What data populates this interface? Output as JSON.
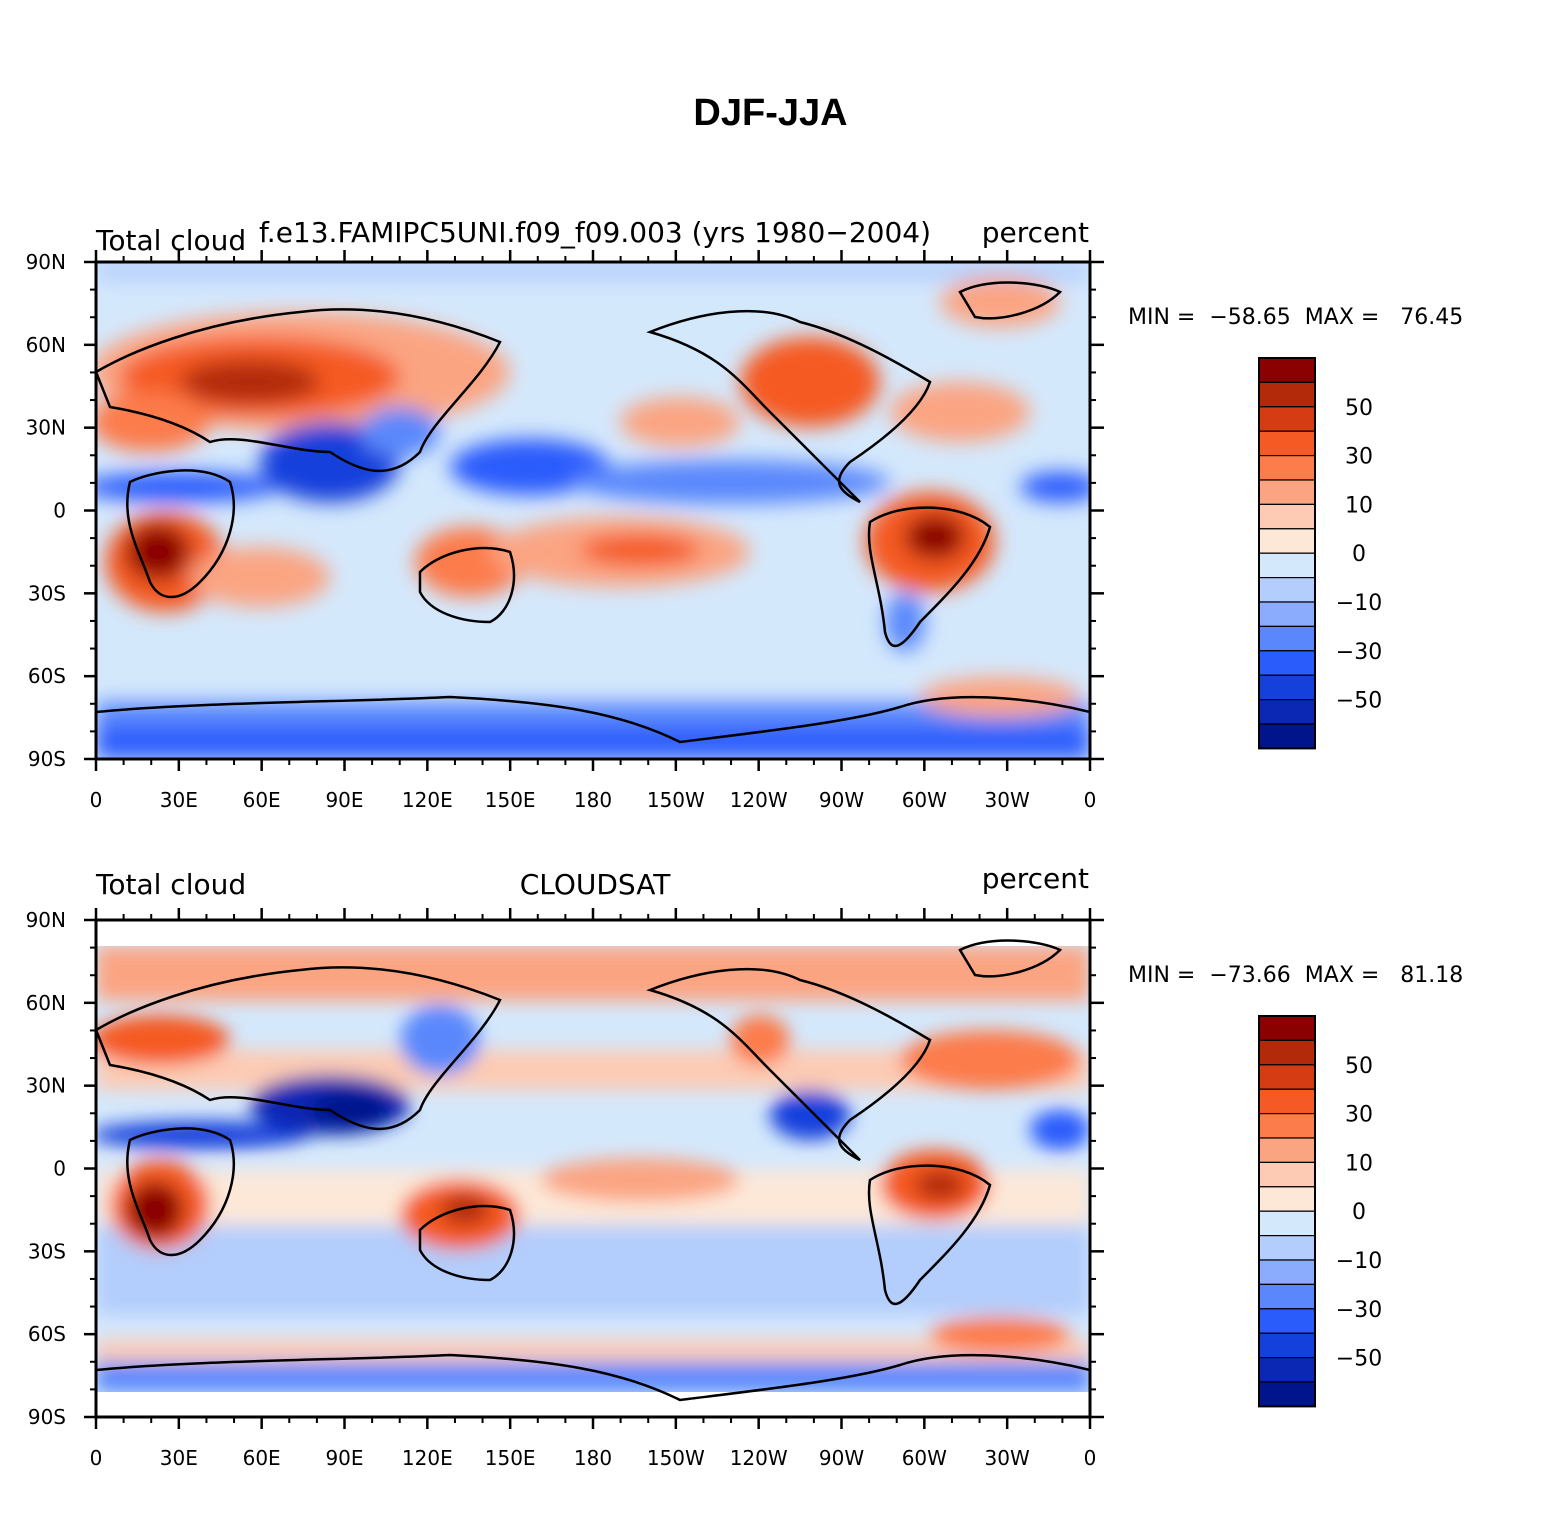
{
  "title": "DJF-JJA",
  "x_ticks": [
    "0",
    "30E",
    "60E",
    "90E",
    "120E",
    "150E",
    "180",
    "150W",
    "120W",
    "90W",
    "60W",
    "30W",
    "0"
  ],
  "y_ticks": [
    "90N",
    "60N",
    "30N",
    "0",
    "30S",
    "60S",
    "90S"
  ],
  "colorbar": {
    "colors": [
      "#8b0000",
      "#b22a0a",
      "#d63c14",
      "#f55a24",
      "#fc7c4c",
      "#fba482",
      "#fdcbb3",
      "#fde8d8",
      "#d4e8fc",
      "#b3cdfc",
      "#8bacfc",
      "#5a88fc",
      "#2a5cfc",
      "#1440dc",
      "#0a28b4",
      "#00148b"
    ],
    "labels": [
      "50",
      "30",
      "10",
      "0",
      "−10",
      "−30",
      "−50"
    ]
  },
  "panels": [
    {
      "left_label": "Total cloud",
      "center_label": "f.e13.FAMIPC5UNI.f09_f09.003 (yrs 1980−2004)",
      "right_label": "percent",
      "min_label": "MIN",
      "min_value": "−58.65",
      "max_label": "MAX",
      "max_value": "76.45"
    },
    {
      "left_label": "Total cloud",
      "center_label": "CLOUDSAT",
      "right_label": "percent",
      "min_label": "MIN",
      "min_value": "−73.66",
      "max_label": "MAX",
      "max_value": "81.18"
    }
  ]
}
